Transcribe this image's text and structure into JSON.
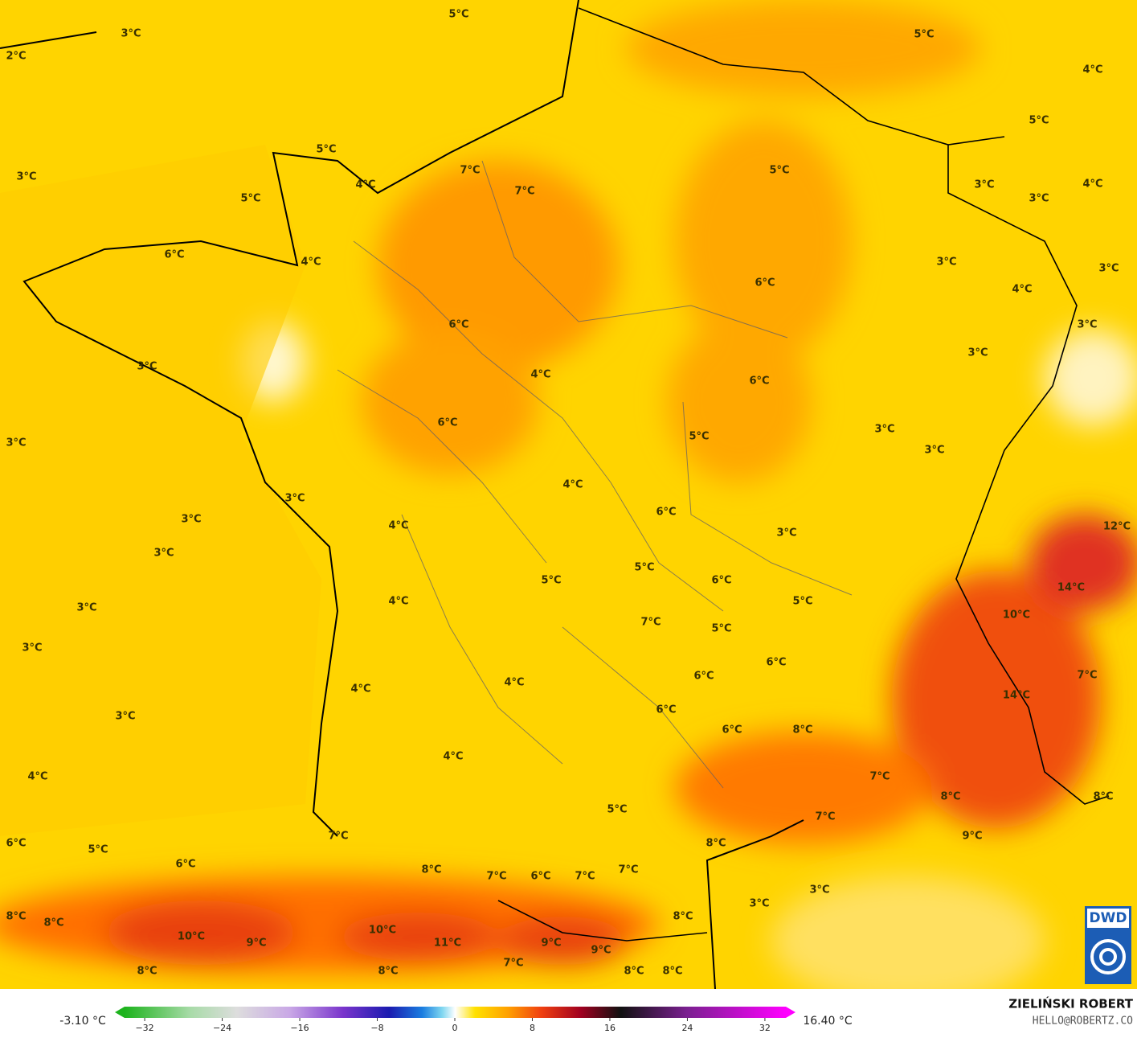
{
  "map": {
    "labels": [
      "3°C",
      "2°C",
      "5°C",
      "5°C",
      "4°C",
      "5°C",
      "3°C",
      "5°C",
      "4°C",
      "7°C",
      "7°C",
      "5°C",
      "5°C",
      "3°C",
      "3°C",
      "4°C",
      "6°C",
      "4°C",
      "3°C",
      "3°C",
      "6°C",
      "4°C",
      "6°C",
      "3°C",
      "3°C",
      "3°C",
      "4°C",
      "6°C",
      "6°C",
      "3°C",
      "5°C",
      "3°C",
      "3°C",
      "4°C",
      "3°C",
      "6°C",
      "3°C",
      "3°C",
      "4°C",
      "3°C",
      "5°C",
      "6°C",
      "5°C",
      "4°C",
      "5°C",
      "3°C",
      "7°C",
      "5°C",
      "10°C",
      "3°C",
      "14°C",
      "12°C",
      "6°C",
      "7°C",
      "6°C",
      "4°C",
      "4°C",
      "14°C",
      "6°C",
      "3°C",
      "8°C",
      "6°C",
      "4°C",
      "4°C",
      "7°C",
      "8°C",
      "8°C",
      "5°C",
      "7°C",
      "7°C",
      "9°C",
      "8°C",
      "6°C",
      "5°C",
      "6°C",
      "8°C",
      "7°C",
      "6°C",
      "7°C",
      "7°C",
      "3°C",
      "3°C",
      "8°C",
      "8°C",
      "8°C",
      "10°C",
      "10°C",
      "9°C",
      "11°C",
      "9°C",
      "9°C",
      "8°C",
      "8°C",
      "7°C",
      "8°C",
      "8°C"
    ]
  },
  "legend": {
    "min_label": "-3.10 °C",
    "max_label": "16.40 °C",
    "ticks": [
      {
        "value": -32,
        "label": "−32"
      },
      {
        "value": -24,
        "label": "−24"
      },
      {
        "value": -16,
        "label": "−16"
      },
      {
        "value": -8,
        "label": "−8"
      },
      0,
      8,
      16,
      24,
      32
    ]
  },
  "credit": {
    "logo": "DWD",
    "author": "ZIELIŃSKI ROBERT",
    "contact": "HELLO@ROBERTZ.CO"
  }
}
